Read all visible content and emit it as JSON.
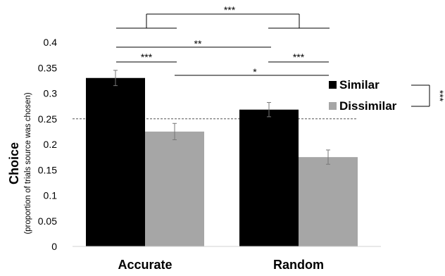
{
  "chart_data": {
    "type": "bar",
    "title": "",
    "categories": [
      "Accurate",
      "Random"
    ],
    "series": [
      {
        "name": "Similar",
        "color": "#000000",
        "values": [
          0.33,
          0.268
        ],
        "errors": [
          0.015,
          0.014
        ]
      },
      {
        "name": "Dissimilar",
        "color": "#a6a6a6",
        "values": [
          0.225,
          0.175
        ],
        "errors": [
          0.016,
          0.014
        ]
      }
    ],
    "ylabel": "Choice",
    "ylabel_sub": "(proportion of trials source was chosen)",
    "ylim": [
      0,
      0.4
    ],
    "yticks": [
      0,
      0.05,
      0.1,
      0.15,
      0.2,
      0.25,
      0.3,
      0.35,
      0.4
    ],
    "ytick_labels": [
      "0",
      "0.05",
      "0.1",
      "0.15",
      "0.2",
      "0.25",
      "0.3",
      "0.35",
      "0.4"
    ],
    "reference_line": {
      "value": 0.25,
      "style": "dashed"
    },
    "grid": false,
    "legend": {
      "placement": "right",
      "entries": [
        "Similar",
        "Dissimilar"
      ]
    },
    "significance": [
      {
        "between": [
          "Accurate",
          "Random"
        ],
        "label": "***"
      },
      {
        "between": [
          "Accurate-Similar",
          "Random-Similar"
        ],
        "label": "**"
      },
      {
        "between": [
          "Accurate-Similar",
          "Accurate-Dissimilar"
        ],
        "label": "***"
      },
      {
        "between": [
          "Random-Similar",
          "Random-Dissimilar"
        ],
        "label": "***"
      },
      {
        "between": [
          "Accurate-Dissimilar",
          "Random-Dissimilar"
        ],
        "label": "*"
      },
      {
        "between": [
          "Similar",
          "Dissimilar"
        ],
        "label": "***"
      }
    ]
  }
}
